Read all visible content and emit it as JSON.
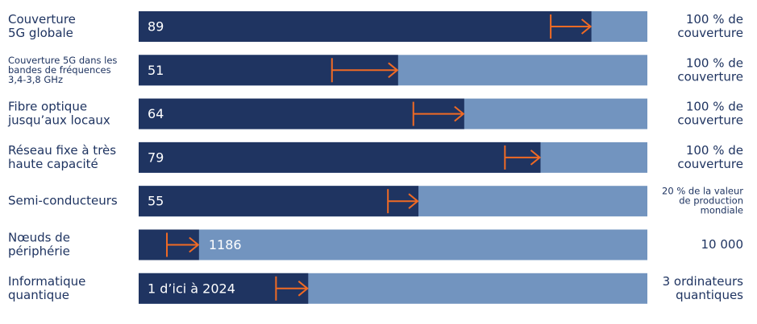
{
  "chart_data": {
    "type": "bar",
    "orientation": "horizontal",
    "colors": {
      "value": "#1f3461",
      "range": "#7294bf",
      "arrow": "#f06a24"
    },
    "rows": [
      {
        "label": [
          "Couverture",
          "5G globale"
        ],
        "value": 89,
        "start": 81,
        "xlim": [
          0,
          100
        ],
        "target_label": [
          "100 % de",
          "couverture"
        ]
      },
      {
        "label": [
          "Couverture 5G dans les",
          "bandes de fréquences",
          "3,4-3,8 GHz"
        ],
        "value": 51,
        "start": 38,
        "xlim": [
          0,
          100
        ],
        "target_label": [
          "100 % de",
          "couverture"
        ]
      },
      {
        "label": [
          "Fibre optique",
          "jusqu’aux locaux"
        ],
        "value": 64,
        "start": 54,
        "xlim": [
          0,
          100
        ],
        "target_label": [
          "100 % de",
          "couverture"
        ]
      },
      {
        "label": [
          "Réseau fixe à très",
          "haute capacité"
        ],
        "value": 79,
        "start": 72,
        "xlim": [
          0,
          100
        ],
        "target_label": [
          "100 % de",
          "couverture"
        ]
      },
      {
        "label": [
          "Semi-conducteurs"
        ],
        "value": 55,
        "start": 49,
        "xlim": [
          0,
          100
        ],
        "target_label": [
          "20 % de la valeur",
          "de production",
          "mondiale"
        ]
      },
      {
        "label": [
          "Nœuds de",
          "périphérie"
        ],
        "value": 1186,
        "start": 555,
        "xlim": [
          0,
          10000
        ],
        "target_label": [
          "10 000"
        ]
      },
      {
        "label": [
          "Informatique",
          "quantique"
        ],
        "value": 1,
        "value_label": "1 d’ici à 2024",
        "start": 0.81,
        "xlim": [
          0,
          3
        ],
        "target_label": [
          "3 ordinateurs",
          "quantiques"
        ]
      }
    ]
  }
}
